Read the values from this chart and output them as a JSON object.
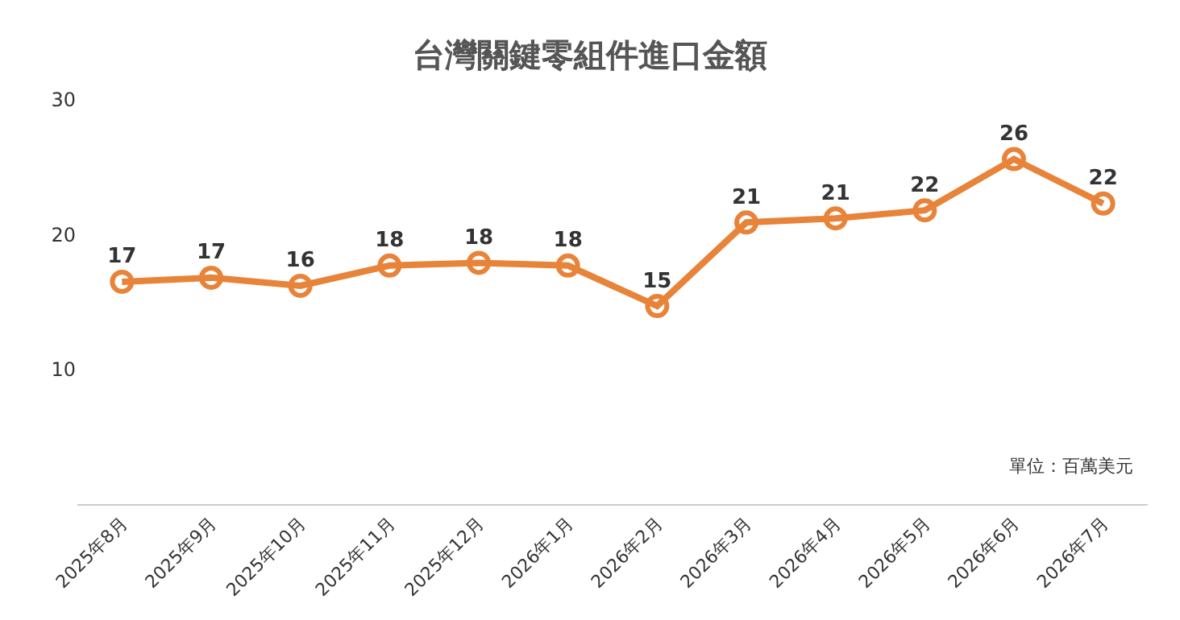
{
  "chart_data": {
    "type": "line",
    "title": "台灣關鍵零組件進口金額",
    "categories": [
      "2025年8月",
      "2025年9月",
      "2025年10月",
      "2025年11月",
      "2025年12月",
      "2026年1月",
      "2026年2月",
      "2026年3月",
      "2026年4月",
      "2026年5月",
      "2026年6月",
      "2026年7月"
    ],
    "series": [
      {
        "color": "#e8833a",
        "values": [
          16.5,
          16.8,
          16.2,
          17.7,
          17.9,
          17.7,
          14.7,
          20.9,
          21.2,
          21.8,
          25.6,
          22.3
        ],
        "value_labels": [
          "17",
          "17",
          "16",
          "18",
          "18",
          "18",
          "15",
          "21",
          "21",
          "22",
          "26",
          "22"
        ]
      }
    ],
    "ylim": [
      0,
      30
    ],
    "yticks": [
      10,
      20,
      30
    ],
    "legend": false,
    "marker": "circle",
    "line_style": "solid",
    "annotations": [
      "單位：百萬美元"
    ]
  }
}
